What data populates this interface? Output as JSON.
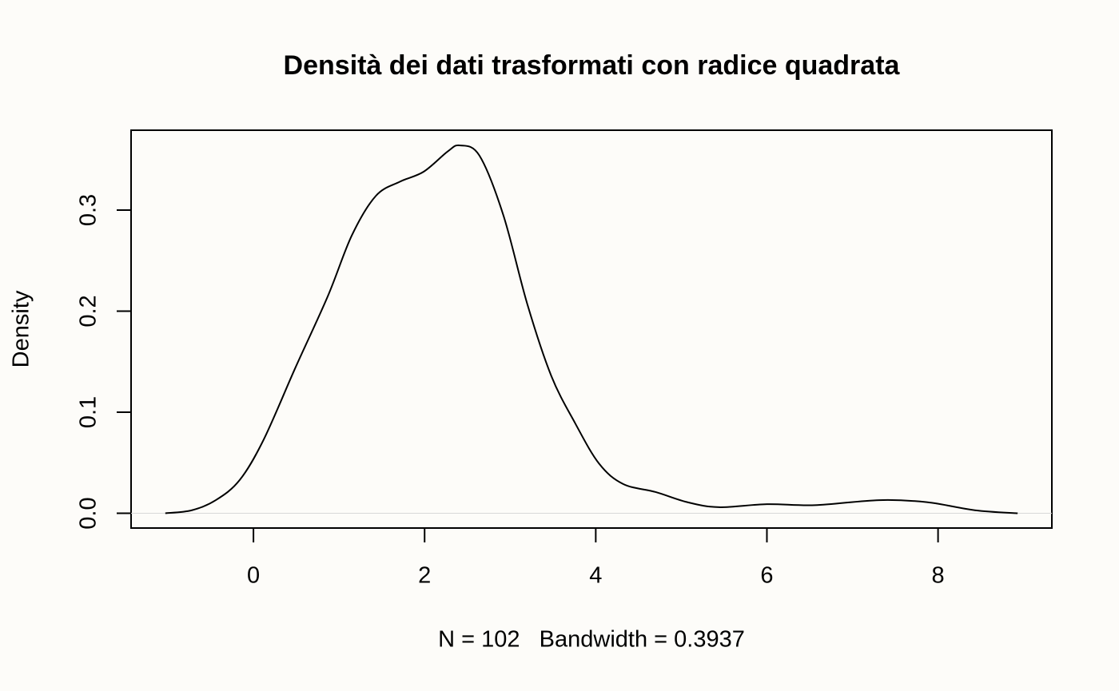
{
  "chart_data": {
    "type": "line",
    "title": "Densità dei dati trasformati con radice quadrata",
    "x_label": "N = 102   Bandwidth = 0.3937",
    "y_label": "Density",
    "x": [
      -1.03,
      -0.72,
      -0.44,
      -0.16,
      0.12,
      0.49,
      0.87,
      1.15,
      1.43,
      1.71,
      1.99,
      2.27,
      2.41,
      2.64,
      2.92,
      3.2,
      3.48,
      3.76,
      4.04,
      4.32,
      4.7,
      5.07,
      5.44,
      6.0,
      6.56,
      7.31,
      7.87,
      8.43,
      8.93
    ],
    "series": [
      {
        "color": "#000000",
        "values": [
          0,
          0.003,
          0.013,
          0.033,
          0.073,
          0.144,
          0.215,
          0.275,
          0.314,
          0.328,
          0.338,
          0.358,
          0.364,
          0.354,
          0.295,
          0.207,
          0.136,
          0.089,
          0.049,
          0.029,
          0.021,
          0.011,
          0.006,
          0.009,
          0.008,
          0.013,
          0.011,
          0.003,
          0
        ]
      }
    ],
    "xlim": [
      -1.43,
      9.33
    ],
    "ylim": [
      -0.0146,
      0.379
    ],
    "xticks": [
      0,
      2,
      4,
      6,
      8
    ],
    "yticks": [
      {
        "value": 0,
        "label": "0.0"
      },
      0.1,
      0.2,
      0.3
    ],
    "zero_line": true
  }
}
